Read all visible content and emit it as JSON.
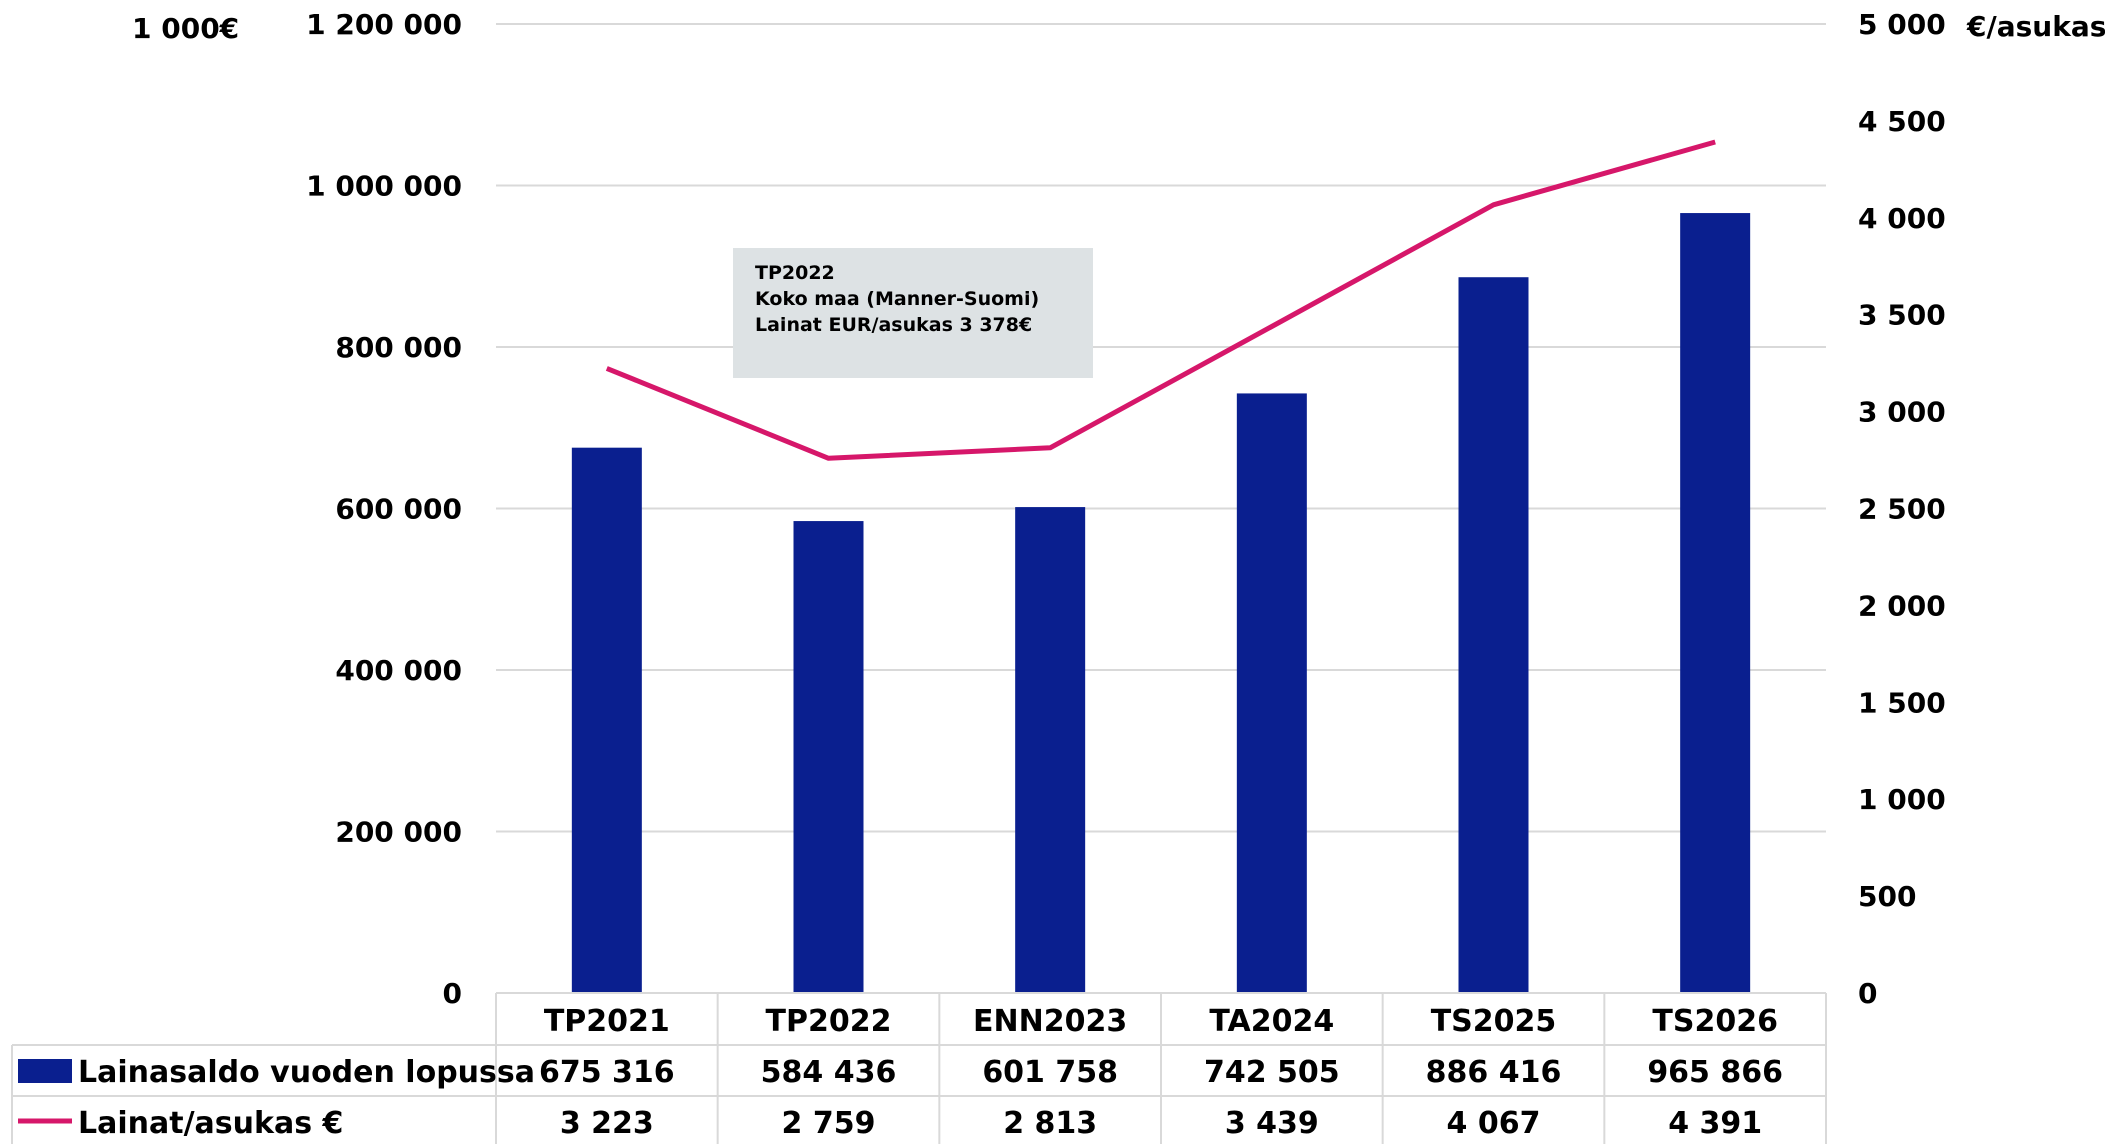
{
  "chart_data": {
    "type": "bar",
    "left_axis_unit": "1 000€",
    "right_axis_unit": "€/asukas",
    "categories": [
      "TP2021",
      "TP2022",
      "ENN2023",
      "TA2024",
      "TS2025",
      "TS2026"
    ],
    "y_left": {
      "ylim": [
        0,
        1200000
      ],
      "ticks": [
        0,
        200000,
        400000,
        600000,
        800000,
        1000000,
        1200000
      ],
      "tick_labels": [
        "0",
        "200 000",
        "400 000",
        "600 000",
        "800 000",
        "1 000 000",
        "1 200 000"
      ]
    },
    "y_right": {
      "ylim": [
        0,
        5000
      ],
      "ticks": [
        0,
        500,
        1000,
        1500,
        2000,
        2500,
        3000,
        3500,
        4000,
        4500,
        5000
      ],
      "tick_labels": [
        "0",
        "500",
        "1 000",
        "1 500",
        "2 000",
        "2 500",
        "3 000",
        "3 500",
        "4 000",
        "4 500",
        "5 000"
      ]
    },
    "series": [
      {
        "name": "Lainasaldo vuoden lopussa",
        "kind": "bar",
        "axis": "left",
        "color": "#0a1f8f",
        "values": [
          675316,
          584436,
          601758,
          742505,
          886416,
          965866
        ],
        "value_labels": [
          "675 316",
          "584 436",
          "601 758",
          "742 505",
          "886 416",
          "965 866"
        ]
      },
      {
        "name": "Lainat/asukas €",
        "kind": "line",
        "axis": "right",
        "color": "#d6176a",
        "values": [
          3223,
          2759,
          2813,
          3439,
          4067,
          4391
        ],
        "value_labels": [
          "3 223",
          "2 759",
          "2 813",
          "3 439",
          "4 067",
          "4 391"
        ]
      }
    ],
    "annotation": {
      "lines": [
        "TP2022",
        "Koko maa (Manner-Suomi)",
        "Lainat EUR/asukas 3 378€"
      ]
    },
    "grid": true,
    "legend": "data-table"
  }
}
